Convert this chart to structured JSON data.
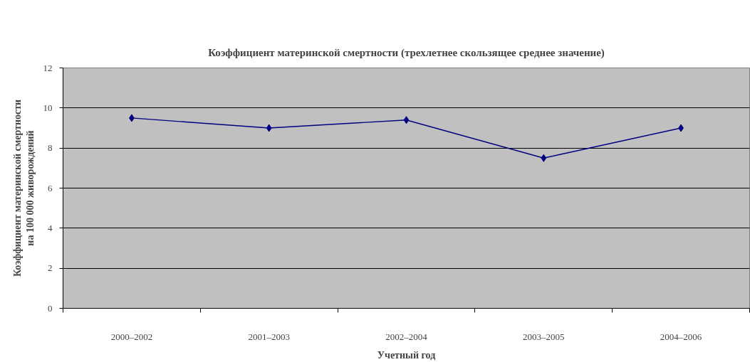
{
  "chart_data": {
    "type": "line",
    "title": "Коэффициент материнской смертности (трехлетнее скользящее среднее значение)",
    "xlabel": "Учетный год",
    "ylabel": "Коэффициент материнской смертности на 100 000 живорождений",
    "categories": [
      "2000–2002",
      "2001–2003",
      "2002–2004",
      "2003–2005",
      "2004–2006"
    ],
    "series": [
      {
        "color": "#000080",
        "values": [
          9.5,
          9.0,
          9.4,
          7.5,
          9.0
        ]
      }
    ],
    "ylim": [
      0,
      12
    ],
    "yticks": [
      0,
      2,
      4,
      6,
      8,
      10,
      12
    ],
    "grid": "y",
    "marker": "diamond",
    "line_style": "solid"
  }
}
